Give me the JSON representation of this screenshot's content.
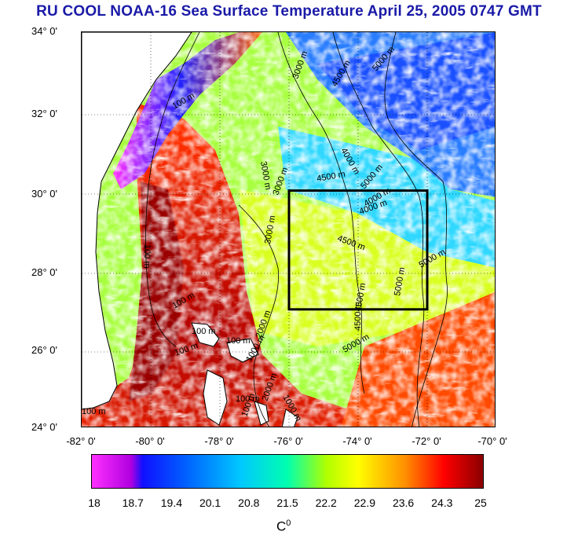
{
  "title": "RU COOL  NOAA-16 Sea Surface Temperature April 25, 2005 0747 GMT",
  "latitude_labels": [
    "34° 0'",
    "32° 0'",
    "30° 0'",
    "28° 0'",
    "26° 0'",
    "24° 0'"
  ],
  "longitude_labels": [
    "-82° 0'",
    "-80° 0'",
    "-78° 0'",
    "-76° 0'",
    "-74° 0'",
    "-72° 0'",
    "-70° 0'"
  ],
  "depth_contours": [
    "100 m",
    "100 m",
    "100 m",
    "100 m",
    "100 m",
    "100 m",
    "100 m",
    "1000 m",
    "1000 m",
    "2000 m",
    "2000 m",
    "3000 m",
    "3000 m",
    "3000 m",
    "4000 m",
    "4000 m",
    "4500 m",
    "4500 m",
    "4500 m",
    "4500 m",
    "4500 m",
    "5000 m",
    "5000 m",
    "5000 m",
    "5000 m",
    "5000 m",
    "4000 m",
    "3000 m",
    "100 m",
    "100 m"
  ],
  "colorbar": {
    "ticks": [
      "18",
      "18.7",
      "19.4",
      "20.1",
      "20.8",
      "21.5",
      "22.2",
      "22.9",
      "23.6",
      "24.3",
      "25"
    ],
    "unit": "C",
    "unit_superscript": "0"
  },
  "region_box": {
    "lon_min": -76,
    "lon_max": -72,
    "lat_min": 27,
    "lat_max": 30
  }
}
